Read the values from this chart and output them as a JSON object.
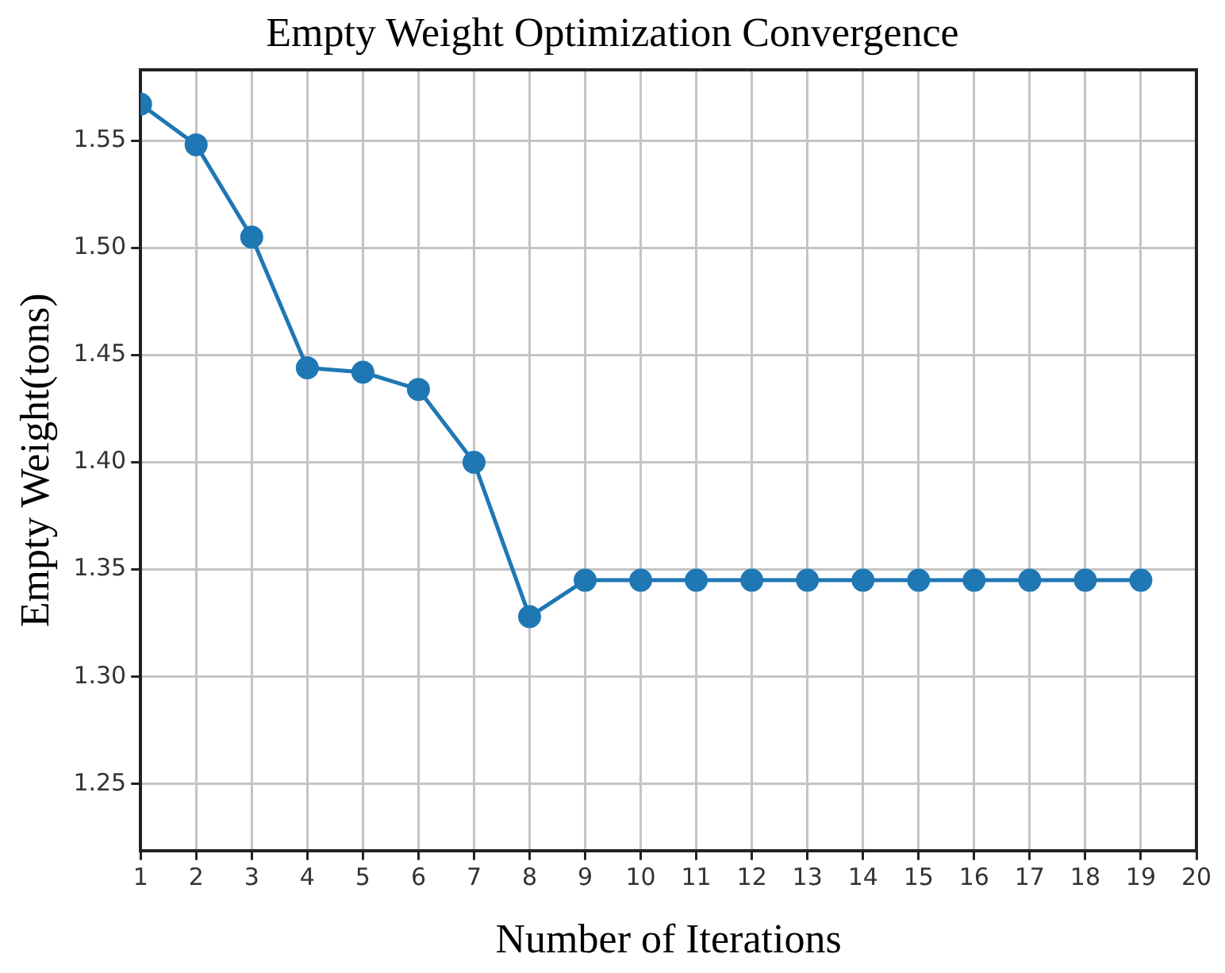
{
  "chart_data": {
    "type": "line",
    "title": "Empty Weight Optimization Convergence",
    "xlabel": "Number of Iterations",
    "ylabel": "Empty Weight(tons)",
    "x": [
      1,
      2,
      3,
      4,
      5,
      6,
      7,
      8,
      9,
      10,
      11,
      12,
      13,
      14,
      15,
      16,
      17,
      18,
      19
    ],
    "series": [
      {
        "color": "#1f77b4",
        "values": [
          1.567,
          1.548,
          1.505,
          1.444,
          1.442,
          1.434,
          1.4,
          1.328,
          1.345,
          1.345,
          1.345,
          1.345,
          1.345,
          1.345,
          1.345,
          1.345,
          1.345,
          1.345,
          1.345
        ]
      }
    ],
    "xlim": [
      1,
      20
    ],
    "xticks": [
      1,
      2,
      3,
      4,
      5,
      6,
      7,
      8,
      9,
      10,
      11,
      12,
      13,
      14,
      15,
      16,
      17,
      18,
      19,
      20
    ],
    "ylim": [
      1.219,
      1.583
    ],
    "yticks": [
      {
        "value": 1.25,
        "label": "1.25"
      },
      {
        "value": 1.3,
        "label": "1.30"
      },
      {
        "value": 1.35,
        "label": "1.35"
      },
      {
        "value": 1.4,
        "label": "1.40"
      },
      {
        "value": 1.45,
        "label": "1.45"
      },
      {
        "value": 1.5,
        "label": "1.50"
      },
      {
        "value": 1.55,
        "label": "1.55"
      }
    ],
    "grid": true,
    "legend": false,
    "marker": "circle",
    "line_style": "solid"
  }
}
